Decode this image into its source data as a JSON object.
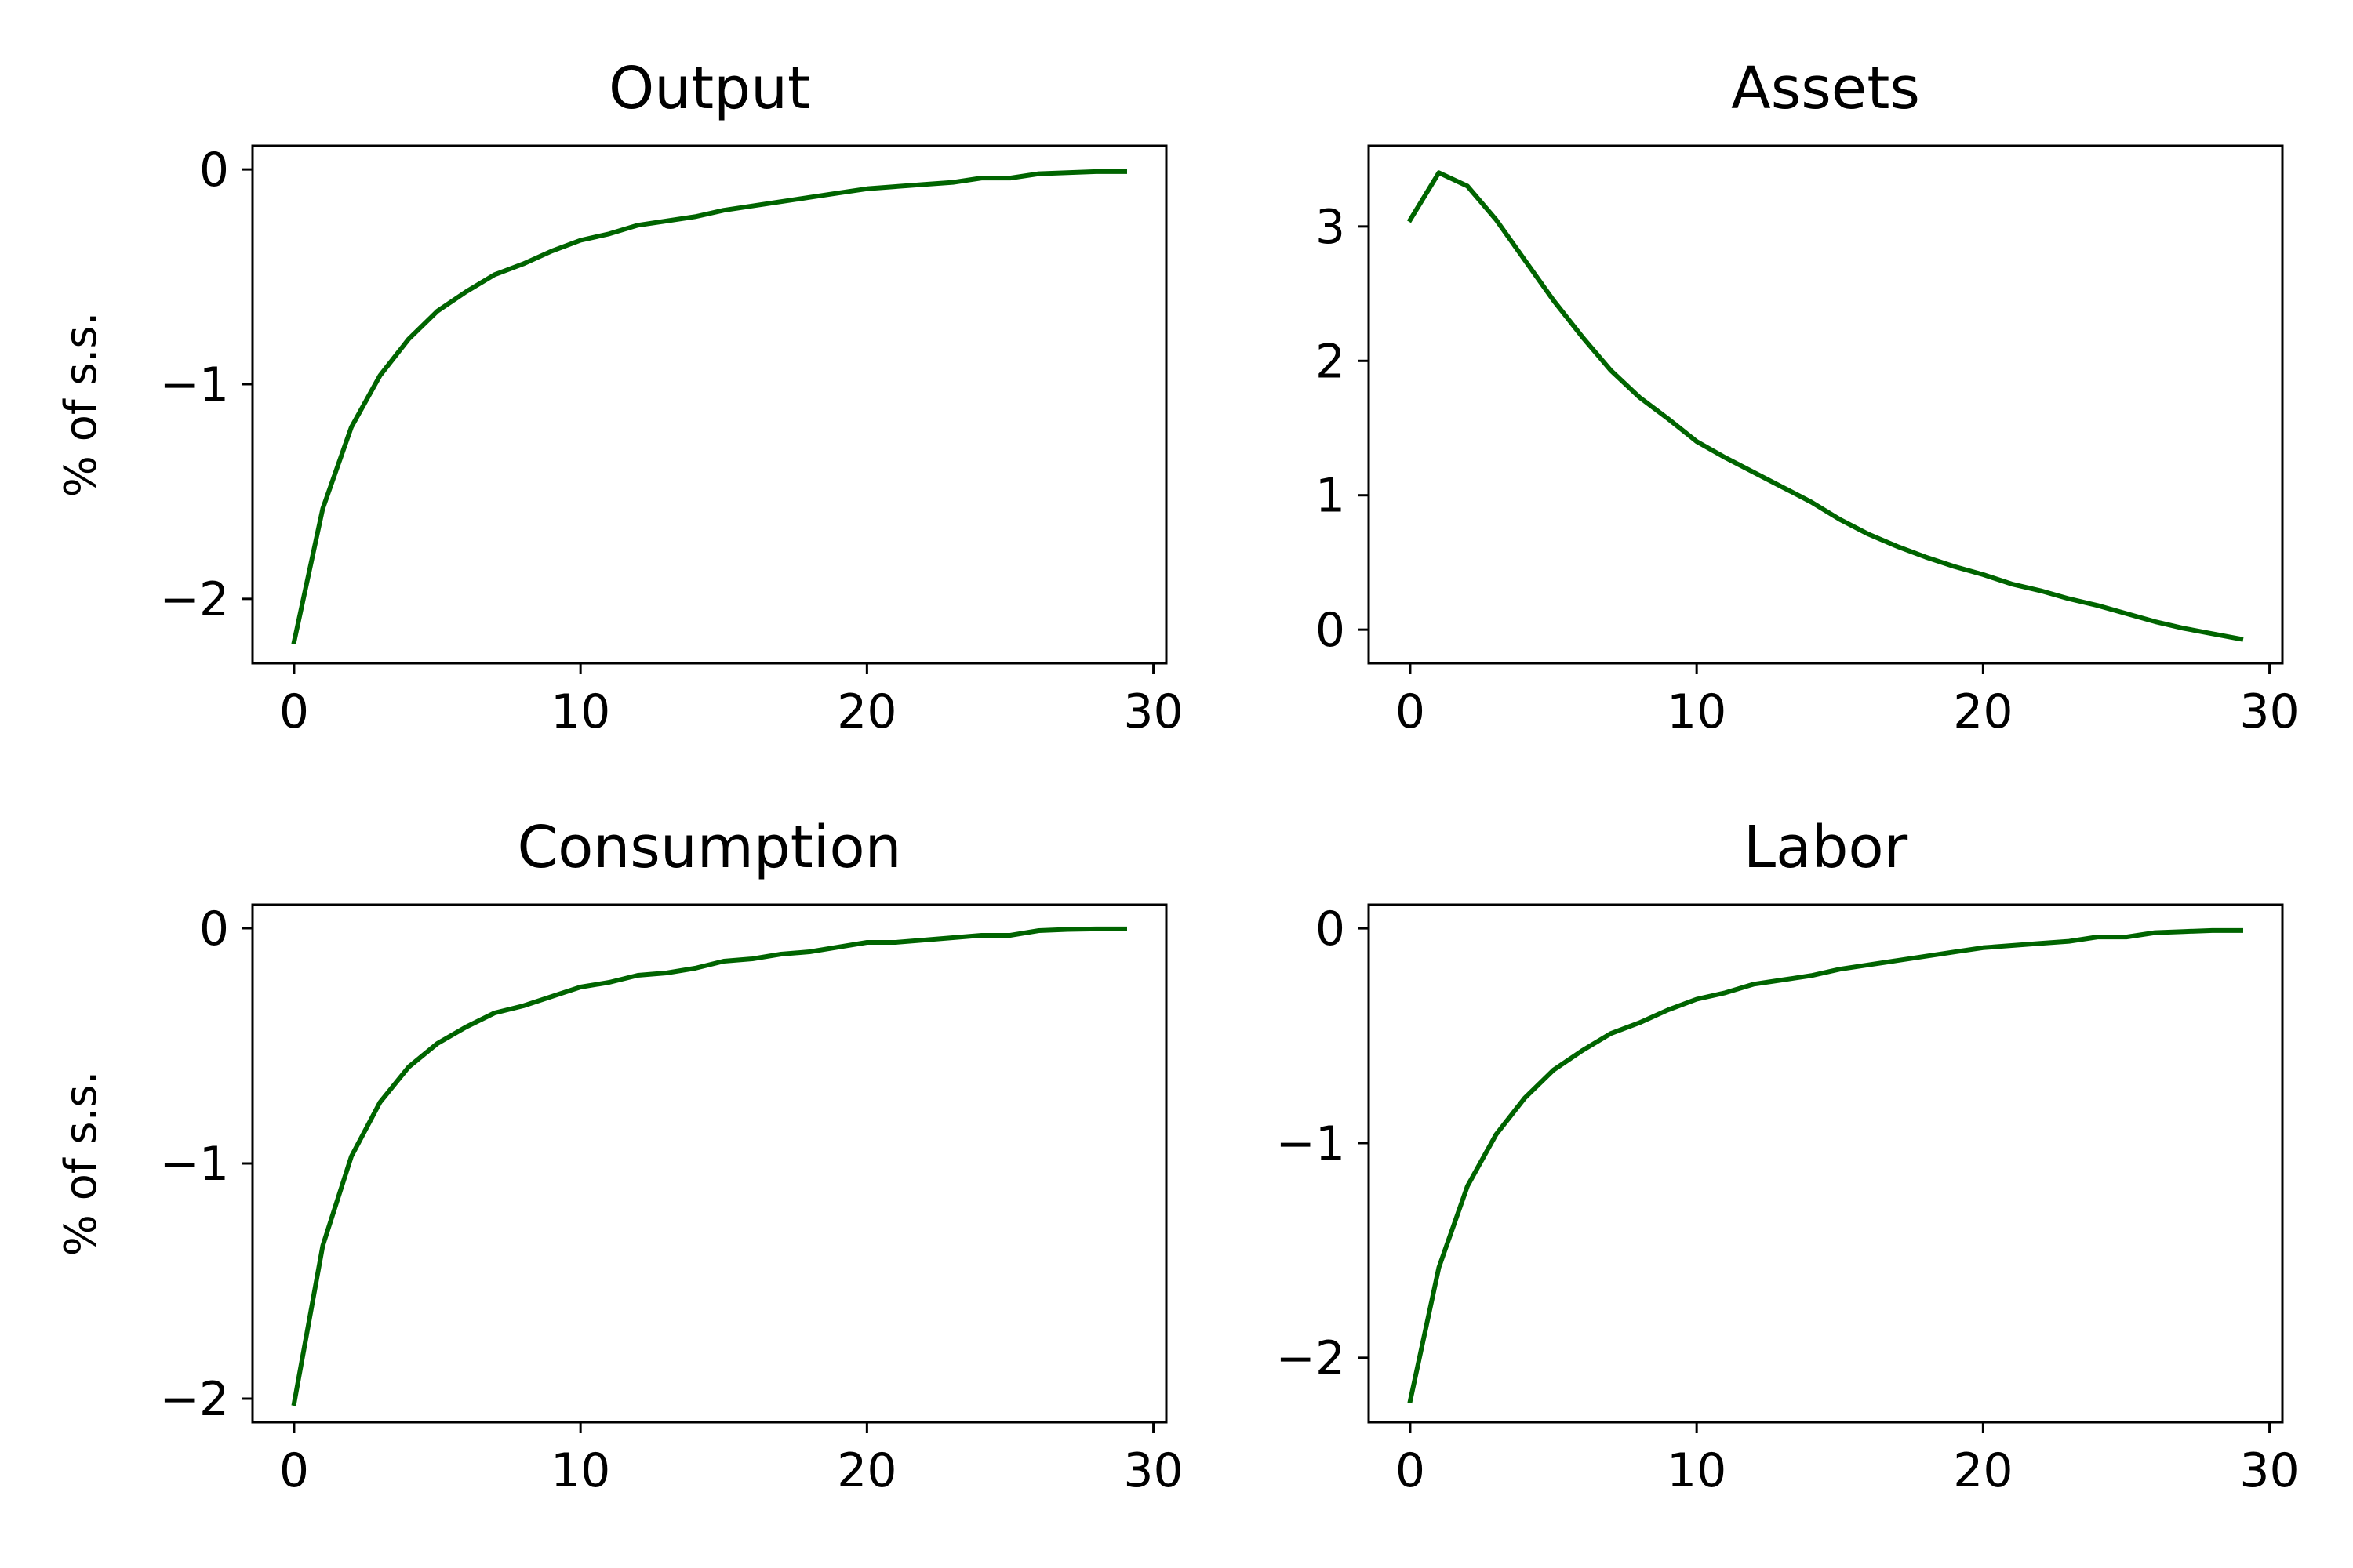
{
  "chart_data": [
    {
      "type": "line",
      "title": "Output",
      "ylabel": "% of s.s.",
      "xlabel": "",
      "xlim": [
        -1.45,
        30.45
      ],
      "ylim": [
        -2.3,
        0.11
      ],
      "xticks": [
        0,
        10,
        20,
        30
      ],
      "yticks": [
        0,
        -1,
        -2
      ],
      "ytick_labels": [
        "0",
        "−1",
        "−2"
      ],
      "grid": false,
      "color": "#006400",
      "x": [
        0,
        1,
        2,
        3,
        4,
        5,
        6,
        7,
        8,
        9,
        10,
        11,
        12,
        13,
        14,
        15,
        16,
        17,
        18,
        19,
        20,
        21,
        22,
        23,
        24,
        25,
        26,
        27,
        28,
        29
      ],
      "y": [
        -2.2,
        -1.58,
        -1.2,
        -0.96,
        -0.79,
        -0.66,
        -0.57,
        -0.49,
        -0.44,
        -0.38,
        -0.33,
        -0.3,
        -0.26,
        -0.24,
        -0.22,
        -0.19,
        -0.17,
        -0.15,
        -0.13,
        -0.11,
        -0.09,
        -0.08,
        -0.07,
        -0.06,
        -0.04,
        -0.04,
        -0.02,
        -0.015,
        -0.01,
        -0.01
      ]
    },
    {
      "type": "line",
      "title": "Assets",
      "ylabel": "",
      "xlabel": "",
      "xlim": [
        -1.45,
        30.45
      ],
      "ylim": [
        -0.25,
        3.6
      ],
      "xticks": [
        0,
        10,
        20,
        30
      ],
      "yticks": [
        0,
        1,
        2,
        3
      ],
      "ytick_labels": [
        "0",
        "1",
        "2",
        "3"
      ],
      "grid": false,
      "color": "#006400",
      "x": [
        0,
        1,
        2,
        3,
        4,
        5,
        6,
        7,
        8,
        9,
        10,
        11,
        12,
        13,
        14,
        15,
        16,
        17,
        18,
        19,
        20,
        21,
        22,
        23,
        24,
        25,
        26,
        27,
        28,
        29
      ],
      "y": [
        3.05,
        3.4,
        3.3,
        3.05,
        2.75,
        2.45,
        2.18,
        1.93,
        1.73,
        1.57,
        1.4,
        1.28,
        1.17,
        1.06,
        0.95,
        0.82,
        0.71,
        0.62,
        0.54,
        0.47,
        0.41,
        0.34,
        0.29,
        0.23,
        0.18,
        0.12,
        0.06,
        0.01,
        -0.03,
        -0.07
      ]
    },
    {
      "type": "line",
      "title": "Consumption",
      "ylabel": "% of s.s.",
      "xlabel": "",
      "xlim": [
        -1.45,
        30.45
      ],
      "ylim": [
        -2.1,
        0.1
      ],
      "xticks": [
        0,
        10,
        20,
        30
      ],
      "yticks": [
        0,
        -1,
        -2
      ],
      "ytick_labels": [
        "0",
        "−1",
        "−2"
      ],
      "grid": false,
      "color": "#006400",
      "x": [
        0,
        1,
        2,
        3,
        4,
        5,
        6,
        7,
        8,
        9,
        10,
        11,
        12,
        13,
        14,
        15,
        16,
        17,
        18,
        19,
        20,
        21,
        22,
        23,
        24,
        25,
        26,
        27,
        28,
        29
      ],
      "y": [
        -2.02,
        -1.35,
        -0.97,
        -0.74,
        -0.59,
        -0.49,
        -0.42,
        -0.36,
        -0.33,
        -0.29,
        -0.25,
        -0.23,
        -0.2,
        -0.19,
        -0.17,
        -0.14,
        -0.13,
        -0.11,
        -0.1,
        -0.08,
        -0.06,
        -0.06,
        -0.05,
        -0.04,
        -0.03,
        -0.03,
        -0.01,
        -0.005,
        -0.003,
        -0.003
      ]
    },
    {
      "type": "line",
      "title": "Labor",
      "ylabel": "",
      "xlabel": "",
      "xlim": [
        -1.45,
        30.45
      ],
      "ylim": [
        -2.3,
        0.11
      ],
      "xticks": [
        0,
        10,
        20,
        30
      ],
      "yticks": [
        0,
        -1,
        -2
      ],
      "ytick_labels": [
        "0",
        "−1",
        "−2"
      ],
      "grid": false,
      "color": "#006400",
      "x": [
        0,
        1,
        2,
        3,
        4,
        5,
        6,
        7,
        8,
        9,
        10,
        11,
        12,
        13,
        14,
        15,
        16,
        17,
        18,
        19,
        20,
        21,
        22,
        23,
        24,
        25,
        26,
        27,
        28,
        29
      ],
      "y": [
        -2.2,
        -1.58,
        -1.2,
        -0.96,
        -0.79,
        -0.66,
        -0.57,
        -0.49,
        -0.44,
        -0.38,
        -0.33,
        -0.3,
        -0.26,
        -0.24,
        -0.22,
        -0.19,
        -0.17,
        -0.15,
        -0.13,
        -0.11,
        -0.09,
        -0.08,
        -0.07,
        -0.06,
        -0.04,
        -0.04,
        -0.02,
        -0.015,
        -0.01,
        -0.01
      ]
    }
  ]
}
